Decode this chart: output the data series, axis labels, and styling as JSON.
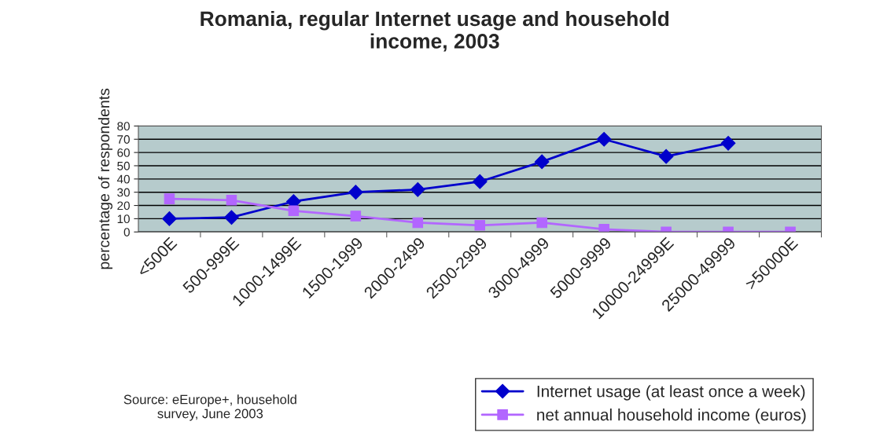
{
  "chart_data": {
    "type": "line",
    "title": "Romania, regular Internet usage and household\nincome, 2003",
    "ylabel": "percentage of respondents",
    "categories": [
      "<500E",
      "500-999E",
      "1000-1499E",
      "1500-1999",
      "2000-2499",
      "2500-2999",
      "3000-4999",
      "5000-9999",
      "10000-24999E",
      "25000-49999",
      ">50000E"
    ],
    "series": [
      {
        "name": "Internet usage (at least once a week)",
        "color": "#0000cc",
        "marker": "diamond",
        "values": [
          10,
          11,
          23,
          30,
          32,
          38,
          53,
          70,
          57,
          67,
          null
        ]
      },
      {
        "name": "net annual household income (euros)",
        "color": "#b266ff",
        "marker": "square",
        "values": [
          25,
          24,
          16,
          12,
          7,
          5,
          7,
          2,
          0,
          0,
          0
        ]
      }
    ],
    "ylim": [
      0,
      80
    ],
    "yticks": [
      0,
      10,
      20,
      30,
      40,
      50,
      60,
      70,
      80
    ],
    "grid": "y",
    "legend": "bottom right",
    "annotations": [
      "Source: eEurope+, household\nsurvey, June 2003"
    ]
  }
}
